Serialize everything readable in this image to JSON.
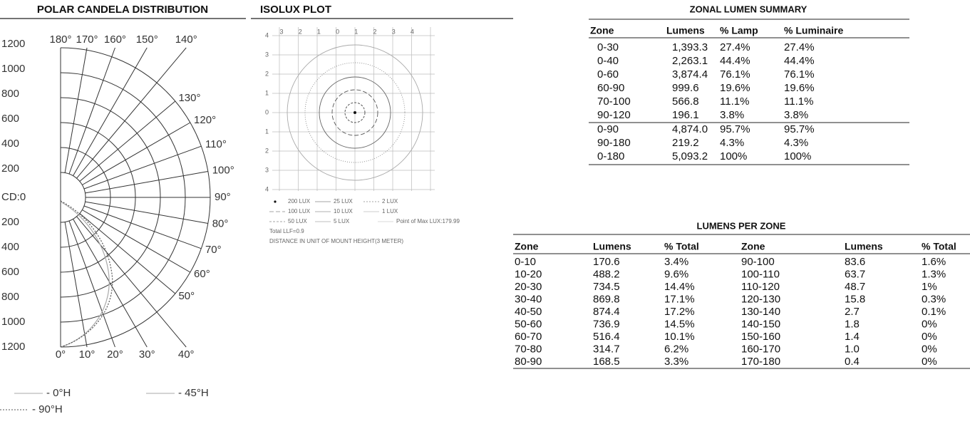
{
  "polar": {
    "title": "POLAR CANDELA DISTRIBUTION",
    "radial_labels": [
      "1200",
      "1000",
      "800",
      "600",
      "400",
      "200",
      "CD:0",
      "200",
      "400",
      "600",
      "800",
      "1000",
      "1200"
    ],
    "angle_labels": [
      "0°",
      "10°",
      "20°",
      "30°",
      "40°",
      "50°",
      "60°",
      "70°",
      "80°",
      "90°",
      "100°",
      "110°",
      "120°",
      "130°",
      "140°",
      "150°",
      "160°",
      "170°",
      "180°"
    ],
    "legend": [
      "- 0°H",
      "- 45°H",
      "- 90°H"
    ]
  },
  "isolux": {
    "title": "ISOLUX PLOT",
    "x_labels": [
      "3",
      "2",
      "1",
      "0",
      "1",
      "2",
      "3",
      "4"
    ],
    "y_labels": [
      "4",
      "3",
      "2",
      "1",
      "0",
      "1",
      "2",
      "3",
      "4"
    ],
    "legend": [
      "200 LUX",
      "25 LUX",
      "2 LUX",
      "100 LUX",
      "10 LUX",
      "1 LUX",
      "50 LUX",
      "5 LUX",
      "Point of Max LUX:179.99"
    ],
    "notes": [
      "Total LLF=0.9",
      "DISTANCE IN UNIT OF MOUNT HEIGHT(3 METER)"
    ]
  },
  "zonal_summary": {
    "title": "ZONAL LUMEN SUMMARY",
    "header": [
      "Zone",
      "Lumens",
      "% Lamp",
      "% Luminaire"
    ],
    "rows": [
      [
        "0-30",
        "1,393.3",
        "27.4%",
        "27.4%"
      ],
      [
        "0-40",
        "2,263.1",
        "44.4%",
        "44.4%"
      ],
      [
        "0-60",
        "3,874.4",
        "76.1%",
        "76.1%"
      ],
      [
        "60-90",
        "999.6",
        "19.6%",
        "19.6%"
      ],
      [
        "70-100",
        "566.8",
        "11.1%",
        "11.1%"
      ],
      [
        "90-120",
        "196.1",
        "3.8%",
        "3.8%"
      ],
      [
        "0-90",
        "4,874.0",
        "95.7%",
        "95.7%"
      ],
      [
        "90-180",
        "219.2",
        "4.3%",
        "4.3%"
      ],
      [
        "0-180",
        "5,093.2",
        "100%",
        "100%"
      ]
    ]
  },
  "lumens_per_zone": {
    "title": "LUMENS PER ZONE",
    "header": [
      "Zone",
      "Lumens",
      "% Total",
      "Zone",
      "Lumens",
      "% Total"
    ],
    "rows": [
      [
        "0-10",
        "170.6",
        "3.4%",
        "90-100",
        "83.6",
        "1.6%"
      ],
      [
        "10-20",
        "488.2",
        "9.6%",
        "100-110",
        "63.7",
        "1.3%"
      ],
      [
        "20-30",
        "734.5",
        "14.4%",
        "110-120",
        "48.7",
        "1%"
      ],
      [
        "30-40",
        "869.8",
        "17.1%",
        "120-130",
        "15.8",
        "0.3%"
      ],
      [
        "40-50",
        "874.4",
        "17.2%",
        "130-140",
        "2.7",
        "0.1%"
      ],
      [
        "50-60",
        "736.9",
        "14.5%",
        "140-150",
        "1.8",
        "0%"
      ],
      [
        "60-70",
        "516.4",
        "10.1%",
        "150-160",
        "1.4",
        "0%"
      ],
      [
        "70-80",
        "314.7",
        "6.2%",
        "160-170",
        "1.0",
        "0%"
      ],
      [
        "80-90",
        "168.5",
        "3.3%",
        "170-180",
        "0.4",
        "0%"
      ]
    ]
  }
}
